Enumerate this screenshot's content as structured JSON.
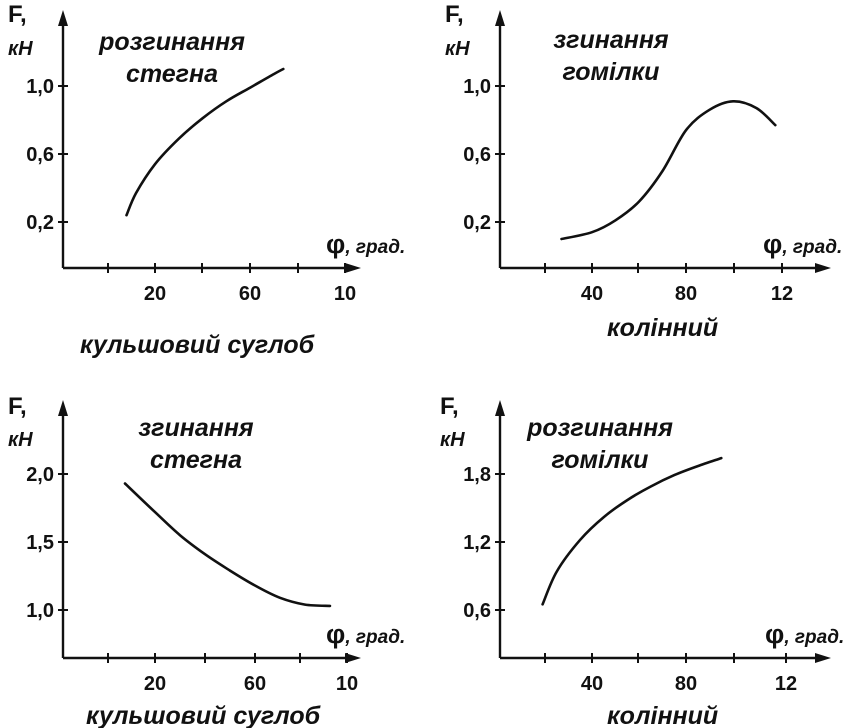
{
  "chart_data": [
    {
      "type": "line",
      "title_lines": [
        "розгинання",
        "стегна"
      ],
      "ylabel": "F,",
      "yunit": "кН",
      "xlabel_symbol": "φ",
      "xlabel_unit": ", град.",
      "caption": "кульшовий суглоб",
      "yticks": [
        "0,2",
        "0,6",
        "1,0"
      ],
      "xticks": [
        "20",
        "60",
        "10"
      ],
      "series": [
        {
          "x": [
            8,
            12,
            20,
            30,
            40,
            50,
            60,
            70,
            74
          ],
          "y": [
            0.24,
            0.37,
            0.54,
            0.69,
            0.81,
            0.91,
            0.99,
            1.07,
            1.1
          ]
        }
      ]
    },
    {
      "type": "line",
      "title_lines": [
        "згинання",
        "гомілки"
      ],
      "ylabel": "F,",
      "yunit": "кН",
      "xlabel_symbol": "φ",
      "xlabel_unit": ", град.",
      "caption": "колінний",
      "yticks": [
        "0,2",
        "0,6",
        "1,0"
      ],
      "xticks": [
        "40",
        "80",
        "12"
      ],
      "series": [
        {
          "x": [
            27,
            40,
            50,
            60,
            70,
            80,
            90,
            100,
            110,
            118
          ],
          "y": [
            0.1,
            0.14,
            0.21,
            0.32,
            0.5,
            0.74,
            0.86,
            0.91,
            0.87,
            0.77
          ]
        }
      ]
    },
    {
      "type": "line",
      "title_lines": [
        "згинання",
        "стегна"
      ],
      "ylabel": "F,",
      "yunit": "кН",
      "xlabel_symbol": "φ",
      "xlabel_unit": ", град.",
      "caption": "кульшовий суглоб",
      "yticks": [
        "1,0",
        "1,5",
        "2,0"
      ],
      "xticks": [
        "20",
        "60",
        "10"
      ],
      "series": [
        {
          "x": [
            8,
            20,
            30,
            40,
            50,
            60,
            70,
            80,
            90
          ],
          "y": [
            1.93,
            1.72,
            1.55,
            1.41,
            1.29,
            1.18,
            1.09,
            1.04,
            1.03
          ]
        }
      ]
    },
    {
      "type": "line",
      "title_lines": [
        "розгинання",
        "гомілки"
      ],
      "ylabel": "F,",
      "yunit": "кН",
      "xlabel_symbol": "φ",
      "xlabel_unit": ", град.",
      "caption": "колінний",
      "yticks": [
        "0,6",
        "1,2",
        "1,8"
      ],
      "xticks": [
        "40",
        "80",
        "12"
      ],
      "series": [
        {
          "x": [
            19,
            25,
            35,
            45,
            55,
            65,
            75,
            85,
            95
          ],
          "y": [
            0.65,
            0.94,
            1.22,
            1.42,
            1.57,
            1.69,
            1.79,
            1.87,
            1.94
          ]
        }
      ]
    }
  ]
}
